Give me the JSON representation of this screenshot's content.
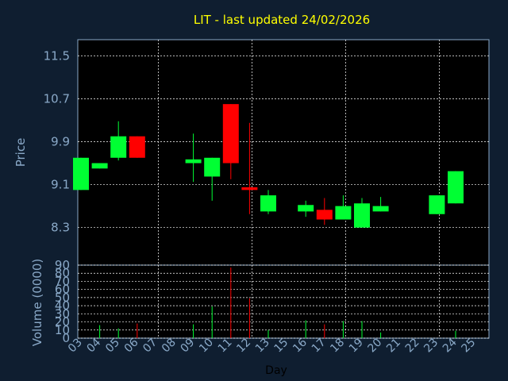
{
  "chart_data": {
    "type": "candlestick",
    "title": "LIT - last updated 24/02/2026",
    "xlabel": "Day",
    "ylabel_price": "Price",
    "ylabel_volume": "Volume (0000)",
    "x_ticks": [
      "03",
      "04",
      "05",
      "06",
      "07",
      "08",
      "09",
      "10",
      "11",
      "12",
      "13",
      "15",
      "16",
      "17",
      "18",
      "19",
      "20",
      "21",
      "22",
      "23",
      "24",
      "25"
    ],
    "price_ylim": [
      7.6,
      11.8
    ],
    "price_ticks": [
      "8.3",
      "9.1",
      "9.9",
      "10.7",
      "11.5"
    ],
    "volume_ylim": [
      0,
      90
    ],
    "volume_ticks": [
      "0",
      "10",
      "20",
      "30",
      "40",
      "50",
      "60",
      "70",
      "80",
      "90"
    ],
    "colors": {
      "up": "#00ff33",
      "down": "#ff0000",
      "title": "#ffff00",
      "axis_text": "#8aa9c8",
      "background": "#0f1e30",
      "plot": "#000000",
      "grid": "#ffffff"
    },
    "candles": [
      {
        "day": "03",
        "open": 9.0,
        "high": 9.6,
        "low": 9.0,
        "close": 9.6,
        "volume": 0
      },
      {
        "day": "04",
        "open": 9.4,
        "high": 9.5,
        "low": 9.4,
        "close": 9.5,
        "volume": 16
      },
      {
        "day": "05",
        "open": 9.6,
        "high": 10.28,
        "low": 9.55,
        "close": 10.0,
        "volume": 12
      },
      {
        "day": "06",
        "open": 10.0,
        "high": 10.0,
        "low": 9.6,
        "close": 9.6,
        "volume": 18
      },
      {
        "day": "09",
        "open": 9.5,
        "high": 10.05,
        "low": 9.15,
        "close": 9.57,
        "volume": 17
      },
      {
        "day": "10",
        "open": 9.25,
        "high": 9.6,
        "low": 8.8,
        "close": 9.6,
        "volume": 39
      },
      {
        "day": "11",
        "open": 10.6,
        "high": 10.6,
        "low": 9.2,
        "close": 9.5,
        "volume": 87
      },
      {
        "day": "12",
        "open": 9.05,
        "high": 10.25,
        "low": 8.55,
        "close": 9.0,
        "volume": 49
      },
      {
        "day": "13",
        "open": 8.6,
        "high": 9.0,
        "low": 8.55,
        "close": 8.9,
        "volume": 10
      },
      {
        "day": "16",
        "open": 8.6,
        "high": 8.8,
        "low": 8.5,
        "close": 8.72,
        "volume": 22
      },
      {
        "day": "17",
        "open": 8.63,
        "high": 8.85,
        "low": 8.35,
        "close": 8.45,
        "volume": 17
      },
      {
        "day": "18",
        "open": 8.45,
        "high": 8.9,
        "low": 8.45,
        "close": 8.7,
        "volume": 21
      },
      {
        "day": "19",
        "open": 8.3,
        "high": 8.85,
        "low": 8.3,
        "close": 8.75,
        "volume": 21
      },
      {
        "day": "20",
        "open": 8.6,
        "high": 8.87,
        "low": 8.6,
        "close": 8.7,
        "volume": 7
      },
      {
        "day": "23",
        "open": 8.55,
        "high": 8.9,
        "low": 8.55,
        "close": 8.9,
        "volume": 0
      },
      {
        "day": "24",
        "open": 8.75,
        "high": 9.35,
        "low": 8.75,
        "close": 9.35,
        "volume": 9
      }
    ]
  }
}
